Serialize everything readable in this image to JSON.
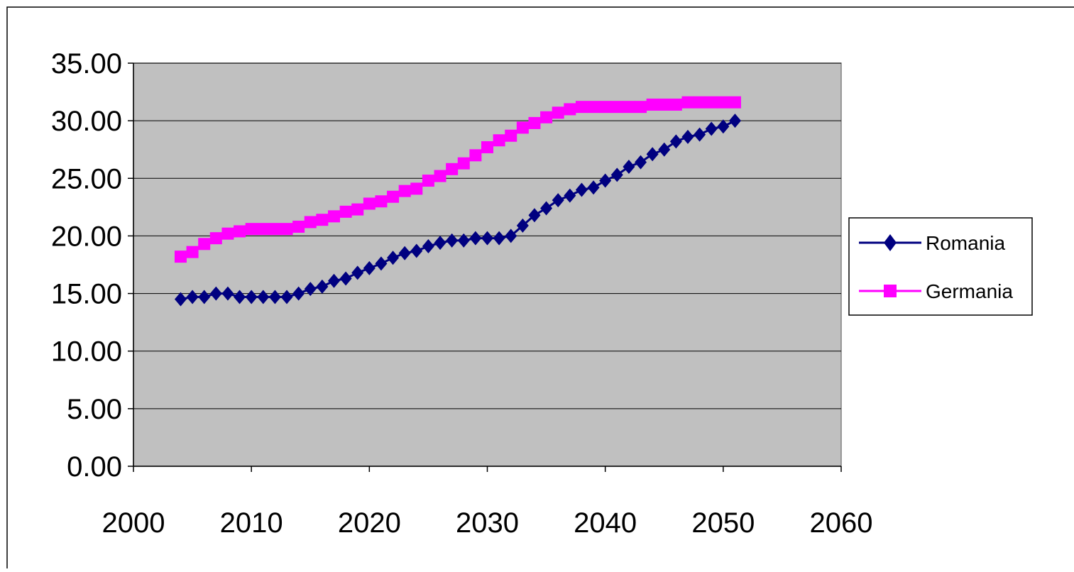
{
  "chart_data": {
    "type": "scatter",
    "title": "",
    "xlabel": "",
    "ylabel": "",
    "xlim": [
      2000,
      2060
    ],
    "ylim": [
      0,
      35
    ],
    "x_ticks": [
      2000,
      2010,
      2020,
      2030,
      2040,
      2050,
      2060
    ],
    "x_tick_labels": [
      "2000",
      "2010",
      "2020",
      "2030",
      "2040",
      "2050",
      "2060"
    ],
    "y_ticks": [
      0,
      5,
      10,
      15,
      20,
      25,
      30,
      35
    ],
    "y_tick_labels": [
      "0.00",
      "5.00",
      "10.00",
      "15.00",
      "20.00",
      "25.00",
      "30.00",
      "35.00"
    ],
    "grid": "horizontal",
    "plot_background": "#c0c0c0",
    "legend_position": "right",
    "x": [
      2004,
      2005,
      2006,
      2007,
      2008,
      2009,
      2010,
      2011,
      2012,
      2013,
      2014,
      2015,
      2016,
      2017,
      2018,
      2019,
      2020,
      2021,
      2022,
      2023,
      2024,
      2025,
      2026,
      2027,
      2028,
      2029,
      2030,
      2031,
      2032,
      2033,
      2034,
      2035,
      2036,
      2037,
      2038,
      2039,
      2040,
      2041,
      2042,
      2043,
      2044,
      2045,
      2046,
      2047,
      2048,
      2049,
      2050,
      2051
    ],
    "series": [
      {
        "name": "Romania",
        "color": "#000080",
        "marker": "diamond",
        "values": [
          14.5,
          14.7,
          14.7,
          15.0,
          15.0,
          14.7,
          14.7,
          14.7,
          14.7,
          14.7,
          15.0,
          15.4,
          15.6,
          16.1,
          16.3,
          16.8,
          17.2,
          17.6,
          18.1,
          18.5,
          18.7,
          19.1,
          19.4,
          19.6,
          19.6,
          19.8,
          19.8,
          19.8,
          20.0,
          20.9,
          21.8,
          22.4,
          23.1,
          23.5,
          24.0,
          24.2,
          24.8,
          25.3,
          26.0,
          26.4,
          27.1,
          27.5,
          28.2,
          28.6,
          28.8,
          29.3,
          29.5,
          30.0
        ]
      },
      {
        "name": "Germania",
        "color": "#ff00ff",
        "marker": "square",
        "values": [
          18.2,
          18.6,
          19.3,
          19.8,
          20.2,
          20.4,
          20.6,
          20.6,
          20.6,
          20.6,
          20.8,
          21.2,
          21.4,
          21.7,
          22.1,
          22.3,
          22.8,
          23.0,
          23.4,
          23.9,
          24.1,
          24.8,
          25.2,
          25.8,
          26.3,
          27.0,
          27.7,
          28.3,
          28.7,
          29.4,
          29.8,
          30.3,
          30.7,
          31.0,
          31.2,
          31.2,
          31.2,
          31.2,
          31.2,
          31.2,
          31.4,
          31.4,
          31.4,
          31.6,
          31.6,
          31.6,
          31.6,
          31.6
        ]
      }
    ]
  }
}
